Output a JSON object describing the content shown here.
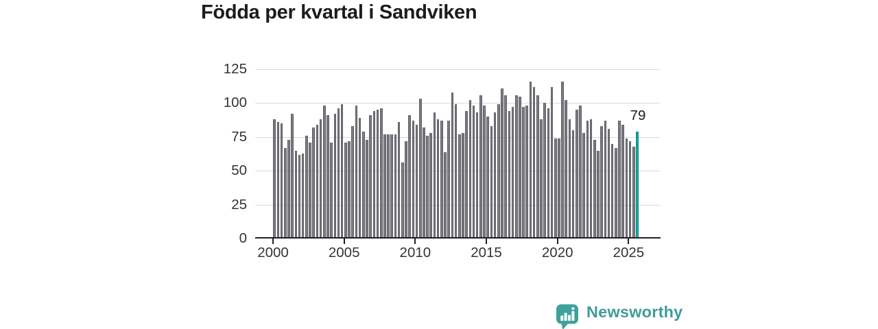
{
  "chart_data": {
    "type": "bar",
    "title": "Födda per kvartal i Sandviken",
    "frequency": "quarterly",
    "x_start_year": 2000,
    "x_start_quarter": 1,
    "x_end_year": 2025,
    "x_end_quarter": 3,
    "values": [
      88,
      86,
      85,
      67,
      73,
      92,
      65,
      62,
      63,
      76,
      71,
      82,
      84,
      88,
      98,
      91,
      71,
      92,
      96,
      99,
      71,
      72,
      83,
      98,
      89,
      79,
      73,
      91,
      94,
      95,
      96,
      77,
      77,
      77,
      77,
      86,
      56,
      72,
      91,
      87,
      84,
      103,
      82,
      76,
      78,
      93,
      88,
      87,
      64,
      87,
      108,
      99,
      77,
      78,
      94,
      102,
      98,
      93,
      106,
      98,
      90,
      83,
      93,
      99,
      111,
      106,
      94,
      97,
      106,
      105,
      97,
      98,
      116,
      112,
      106,
      88,
      100,
      96,
      112,
      74,
      74,
      116,
      102,
      88,
      80,
      95,
      98,
      78,
      87,
      88,
      73,
      65,
      83,
      87,
      81,
      70,
      67,
      87,
      84,
      74,
      72,
      68,
      79
    ],
    "highlight_index": 102,
    "highlight_label": "79",
    "highlight_color": "#12a49e",
    "bar_color": "#7b7b83",
    "x_tick_years": [
      2000,
      2005,
      2010,
      2015,
      2020,
      2025
    ],
    "y_ticks": [
      0,
      25,
      50,
      75,
      100,
      125
    ],
    "ylim": [
      0,
      125
    ],
    "grid": true,
    "legend": null
  },
  "footer": {
    "brand": "Newsworthy"
  },
  "colors": {
    "bar_gray": "#7b7b83",
    "highlight_teal": "#12a49e",
    "logo_teal": "#3fa19b",
    "axis_dark": "#202020",
    "gridline": "#dadada",
    "label_gray": "#343434"
  }
}
